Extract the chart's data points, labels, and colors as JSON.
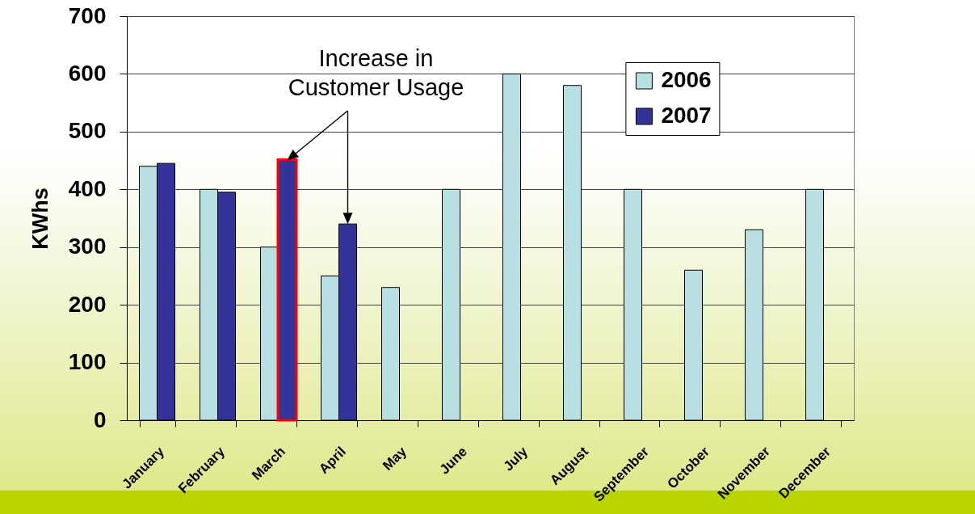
{
  "chart_data": {
    "type": "bar",
    "ylabel": "KWhs",
    "categories": [
      "January",
      "February",
      "March",
      "April",
      "May",
      "June",
      "July",
      "August",
      "September",
      "October",
      "November",
      "December"
    ],
    "series": [
      {
        "name": "2006",
        "color": "#b8e0e3",
        "values": [
          440,
          400,
          300,
          250,
          230,
          400,
          600,
          580,
          400,
          260,
          330,
          400
        ]
      },
      {
        "name": "2007",
        "color": "#333399",
        "values": [
          445,
          395,
          450,
          340,
          null,
          null,
          null,
          null,
          null,
          null,
          null,
          null
        ]
      }
    ],
    "ylim": [
      0,
      700
    ],
    "yticks": [
      0,
      100,
      200,
      300,
      400,
      500,
      600,
      700
    ],
    "grid": "y",
    "legend": "top right",
    "annotations": [
      {
        "text": "Increase in Customer Usage",
        "x": "March",
        "y": 450
      }
    ]
  }
}
